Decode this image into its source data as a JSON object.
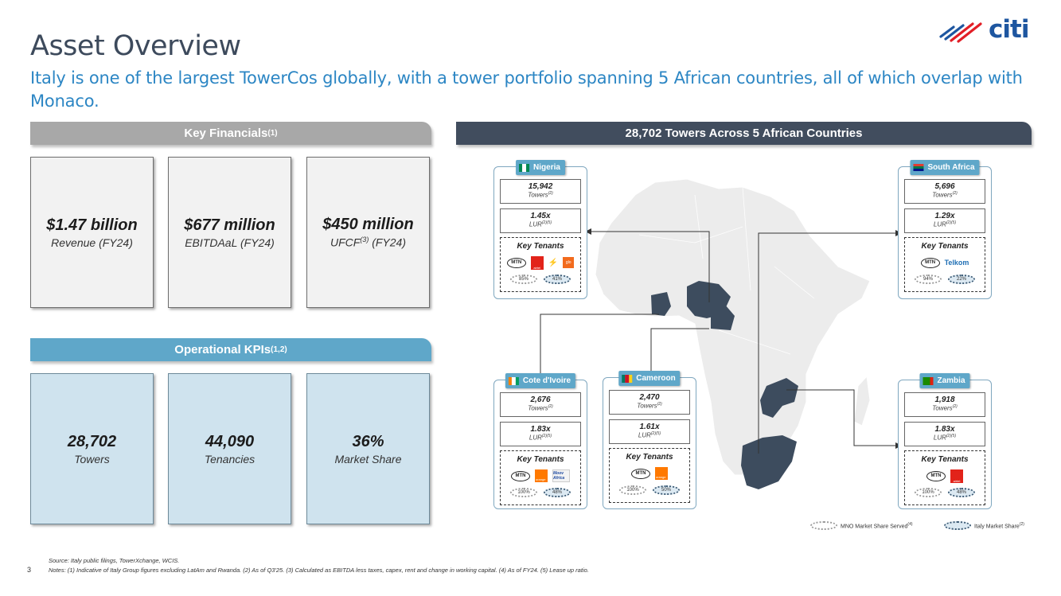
{
  "header": {
    "title": "Asset Overview",
    "subtitle": "Italy is one of the largest TowerCos globally, with a tower portfolio spanning 5 African countries, all of which overlap with Monaco.",
    "logo_text": "citi"
  },
  "financials": {
    "heading": "Key Financials",
    "heading_sup": "(1)",
    "items": [
      {
        "value": "$1.47 billion",
        "label": "Revenue (FY24)",
        "label_sup": "",
        "label_suffix": ""
      },
      {
        "value": "$677 million",
        "label": "EBITDAaL (FY24)",
        "label_sup": "",
        "label_suffix": ""
      },
      {
        "value": "$450 million",
        "label": "UFCF",
        "label_sup": "(3)",
        "label_suffix": " (FY24)"
      }
    ]
  },
  "operational": {
    "heading": "Operational KPIs",
    "heading_sup": "(1,2)",
    "items": [
      {
        "value": "28,702",
        "label": "Towers"
      },
      {
        "value": "44,090",
        "label": "Tenancies"
      },
      {
        "value": "36%",
        "label": "Market Share"
      }
    ]
  },
  "map": {
    "heading": "28,702 Towers Across 5 African Countries",
    "tenants_label": "Key Tenants",
    "towers_label": "Towers",
    "towers_sup": "(2)",
    "lur_label": "LUR",
    "lur_sup": "(2)(5)",
    "highlight_color": "#3d4c5e",
    "land_color": "#ececec",
    "chip_color": "#5fa7c9",
    "countries": [
      {
        "name": "Nigeria",
        "towers": "15,942",
        "lur": "1.45x",
        "tenants": [
          "MTN",
          "airtel",
          "glo"
        ],
        "mno_share": "85%",
        "italy_share": "41%"
      },
      {
        "name": "South Africa",
        "towers": "5,696",
        "lur": "1.29x",
        "tenants": [
          "MTN",
          "Telkom"
        ],
        "mno_share": "94%",
        "italy_share": "22%"
      },
      {
        "name": "Cote d'Ivoire",
        "towers": "2,676",
        "lur": "1.83x",
        "tenants": [
          "MTN",
          "orange",
          "Moov Africa"
        ],
        "mno_share": "100%",
        "italy_share": "48%"
      },
      {
        "name": "Cameroon",
        "towers": "2,470",
        "lur": "1.61x",
        "tenants": [
          "MTN",
          "orange"
        ],
        "mno_share": "100%",
        "italy_share": "50%"
      },
      {
        "name": "Zambia",
        "towers": "1,918",
        "lur": "1.83x",
        "tenants": [
          "MTN",
          "airtel"
        ],
        "mno_share": "100%",
        "italy_share": "48%"
      }
    ],
    "legend": {
      "mno": "MNO Market Share Served",
      "mno_sup": "(4)",
      "italy": "Italy Market Share",
      "italy_sup": "(2)"
    }
  },
  "footer": {
    "source": "Source: Italy public filings, TowerXchange, WCIS.",
    "notes": "Notes: (1) Indicative of Italy Group figures excluding LatAm and Rwanda. (2) As of Q3'25. (3) Calculated as EBITDA less taxes, capex, rent and change in working capital. (4) As of FY24. (5) Lease up ratio.",
    "page": "3"
  }
}
